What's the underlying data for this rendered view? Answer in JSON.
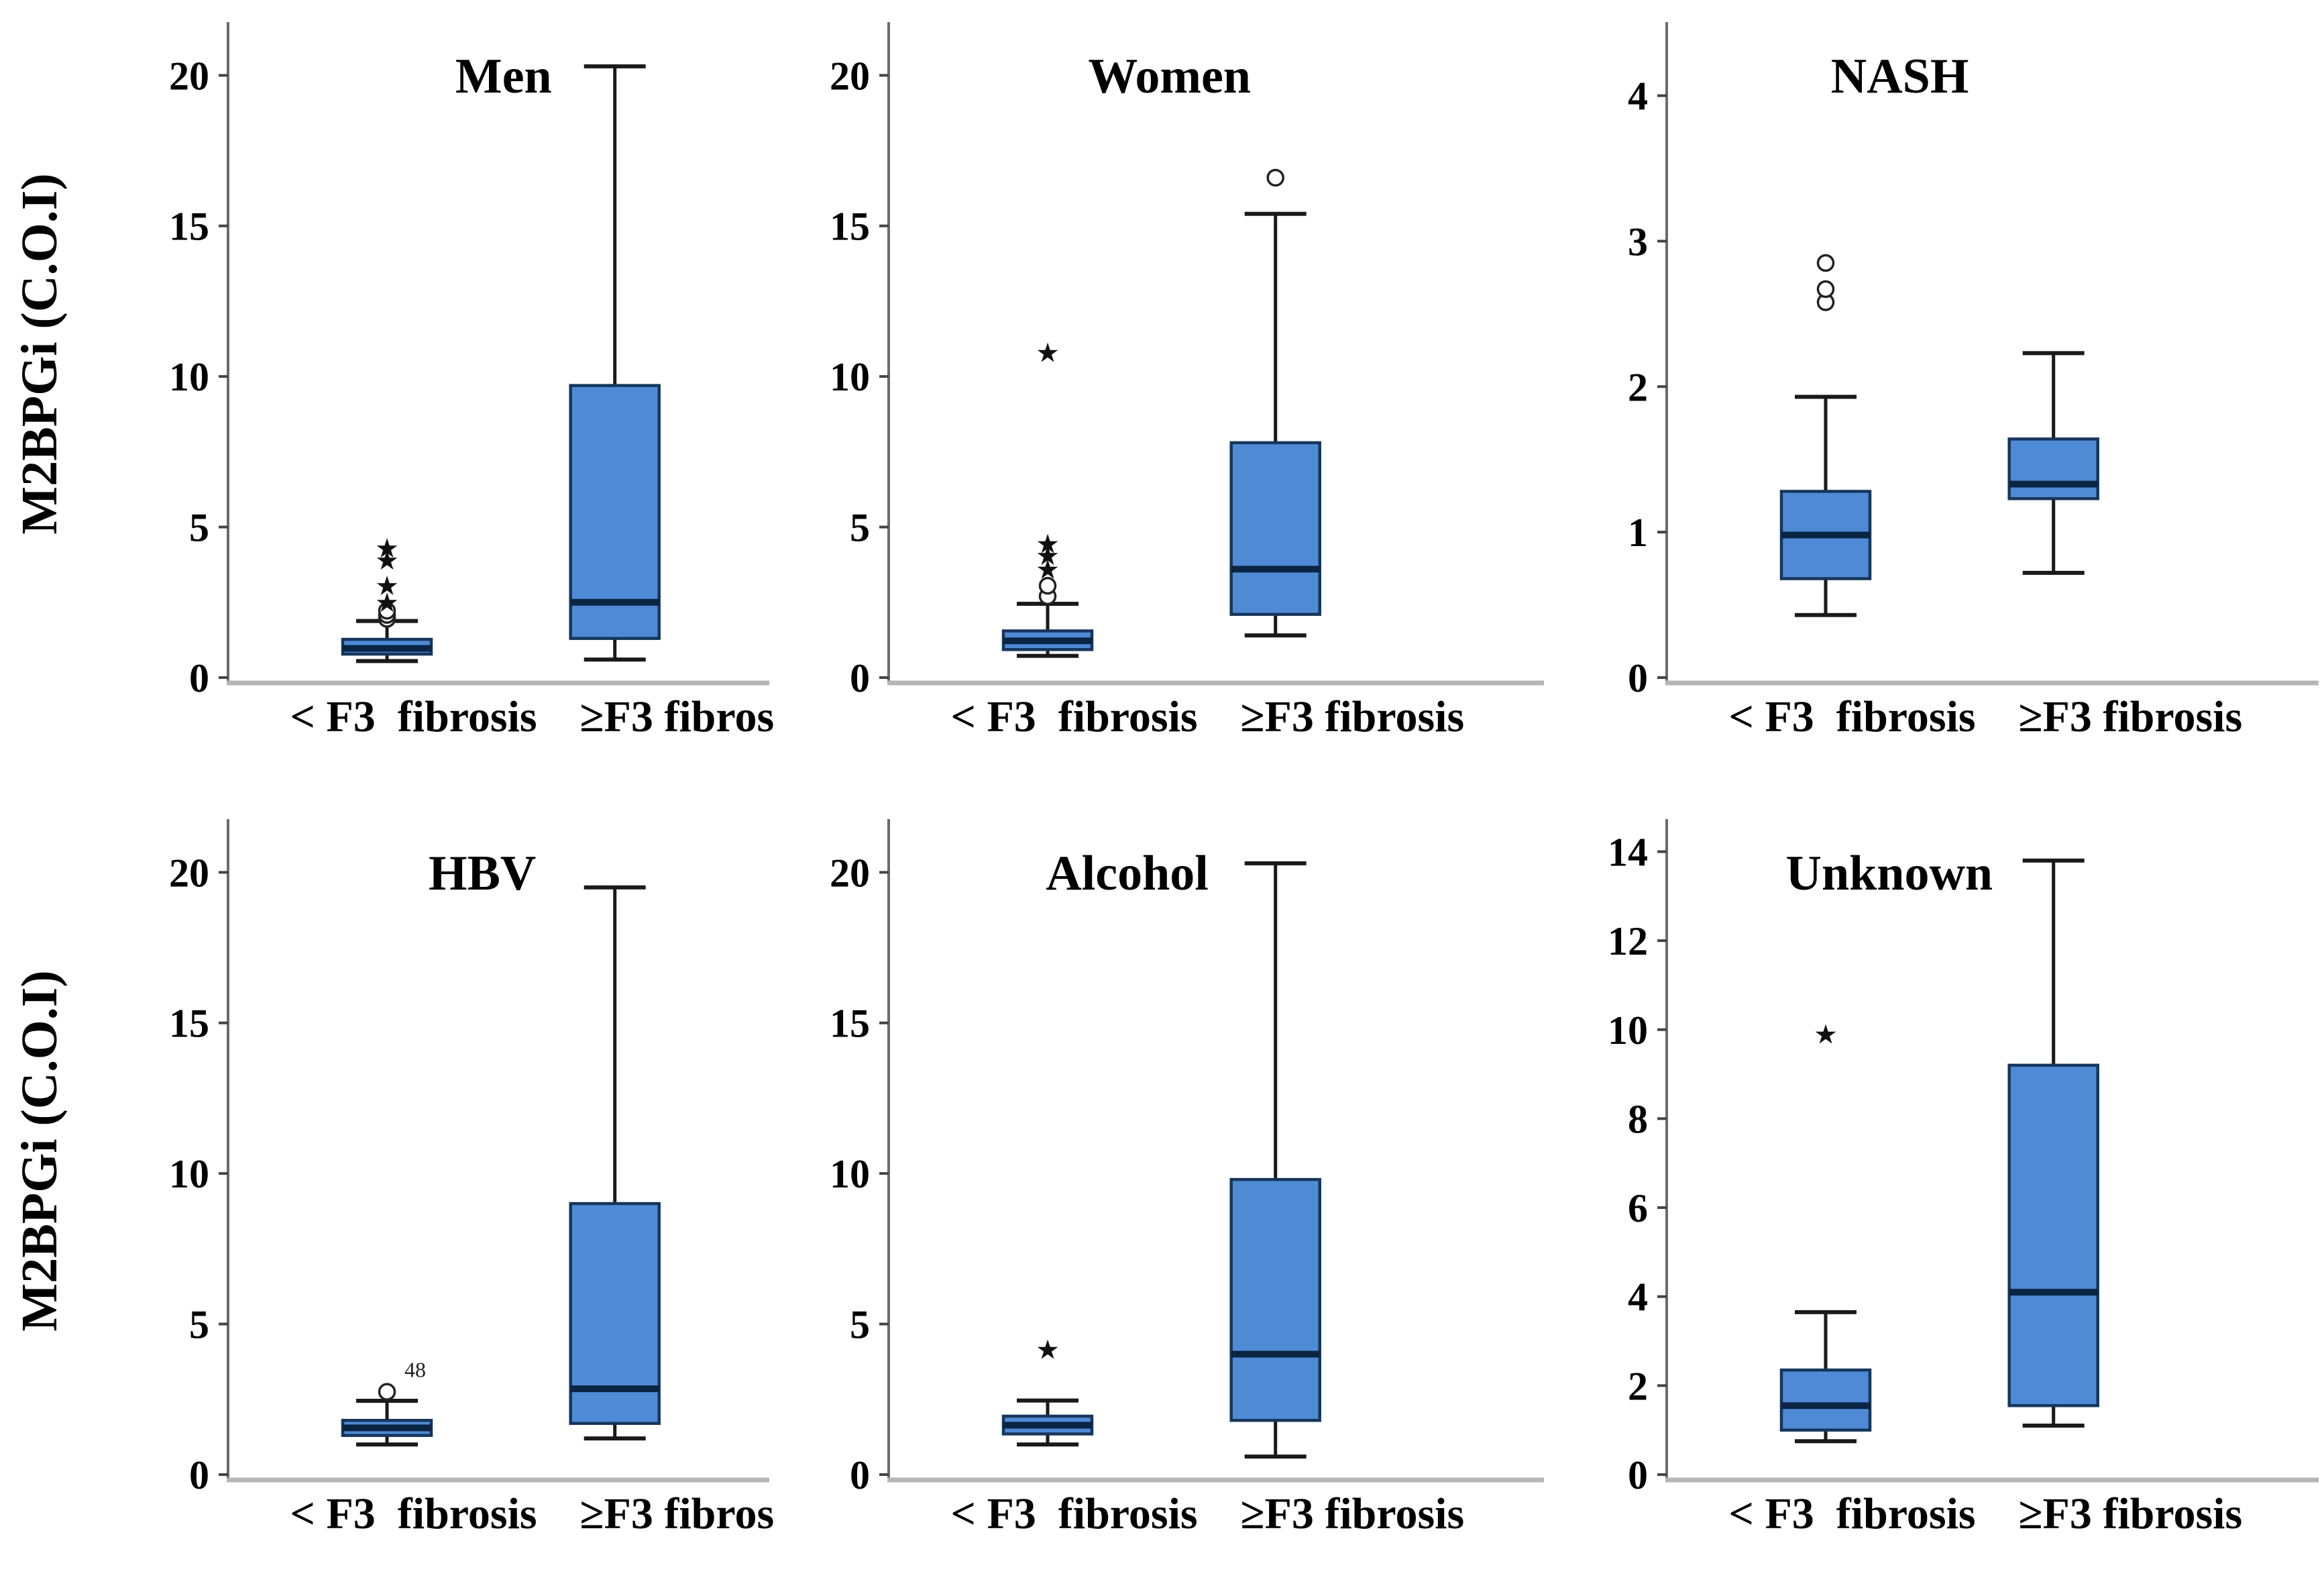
{
  "figure": {
    "ylabel": "M2BPGi (C.O.I)",
    "categories": [
      "< F3  fibrosis",
      "≥F3 fibrosis"
    ],
    "colors": {
      "box_fill": "#4f8bd5",
      "box_border": "#16365c",
      "median_line": "#0a2443",
      "whisker": "#1a1a1a",
      "y_axis": "#6b6b6b",
      "x_axis": "#b5b5b5",
      "tick": "#444444",
      "text": "#000000",
      "outlier_stroke": "#222222",
      "background": "#ffffff"
    }
  },
  "chart_data": [
    {
      "type": "box",
      "title": "Men",
      "title_x": 0.52,
      "show_ylabel": true,
      "plot_left": 340,
      "ymax": 21.5,
      "yticks": [
        0,
        5,
        10,
        15,
        20
      ],
      "boxes": [
        {
          "category": "< F3  fibrosis",
          "whisker_low": 0.55,
          "q1": 0.78,
          "median": 0.97,
          "q3": 1.27,
          "whisker_high": 1.88,
          "outliers_circles": [
            1.95,
            2.08,
            2.22
          ],
          "outliers_stars": [
            2.5,
            3.05,
            3.9,
            4.3
          ]
        },
        {
          "category": "≥F3 fibrosis",
          "whisker_low": 0.6,
          "q1": 1.3,
          "median": 2.5,
          "q3": 9.7,
          "whisker_high": 20.3,
          "outliers_circles": [],
          "outliers_stars": []
        }
      ]
    },
    {
      "type": "box",
      "title": "Women",
      "title_x": 0.53,
      "show_ylabel": false,
      "plot_left": 170,
      "ymax": 21.5,
      "yticks": [
        0,
        5,
        10,
        15,
        20
      ],
      "boxes": [
        {
          "category": "< F3  fibrosis",
          "whisker_low": 0.72,
          "q1": 0.93,
          "median": 1.22,
          "q3": 1.55,
          "whisker_high": 2.45,
          "outliers_circles": [
            2.7,
            3.05
          ],
          "outliers_stars": [
            3.6,
            4.05,
            4.45,
            10.8
          ]
        },
        {
          "category": "≥F3 fibrosis",
          "whisker_low": 1.4,
          "q1": 2.1,
          "median": 3.6,
          "q3": 7.8,
          "whisker_high": 15.4,
          "outliers_circles": [
            16.6
          ],
          "outliers_stars": []
        }
      ]
    },
    {
      "type": "box",
      "title": "NASH",
      "title_x": 0.44,
      "show_ylabel": false,
      "plot_left": 175,
      "ymax": 4.45,
      "yticks": [
        0,
        1,
        2,
        3,
        4
      ],
      "boxes": [
        {
          "category": "< F3  fibrosis",
          "whisker_low": 0.43,
          "q1": 0.68,
          "median": 0.98,
          "q3": 1.28,
          "whisker_high": 1.93,
          "outliers_circles": [
            2.58,
            2.67,
            2.85
          ],
          "outliers_stars": []
        },
        {
          "category": "≥F3 fibrosis",
          "whisker_low": 0.72,
          "q1": 1.23,
          "median": 1.33,
          "q3": 1.64,
          "whisker_high": 2.23,
          "outliers_circles": [],
          "outliers_stars": []
        }
      ]
    },
    {
      "type": "box",
      "title": "HBV",
      "title_x": 0.48,
      "show_ylabel": true,
      "plot_left": 340,
      "ymax": 21.5,
      "yticks": [
        0,
        5,
        10,
        15,
        20
      ],
      "boxes": [
        {
          "category": "< F3  fibrosis",
          "whisker_low": 1.0,
          "q1": 1.3,
          "median": 1.55,
          "q3": 1.8,
          "whisker_high": 2.45,
          "outliers_circles": [
            {
              "v": 2.75,
              "label": "48"
            }
          ],
          "outliers_stars": []
        },
        {
          "category": "≥F3 fibrosis",
          "whisker_low": 1.2,
          "q1": 1.7,
          "median": 2.85,
          "q3": 9.0,
          "whisker_high": 19.5,
          "outliers_circles": [],
          "outliers_stars": []
        }
      ]
    },
    {
      "type": "box",
      "title": "Alcohol",
      "title_x": 0.45,
      "show_ylabel": false,
      "plot_left": 170,
      "ymax": 21.5,
      "yticks": [
        0,
        5,
        10,
        15,
        20
      ],
      "boxes": [
        {
          "category": "< F3  fibrosis",
          "whisker_low": 1.0,
          "q1": 1.35,
          "median": 1.64,
          "q3": 1.94,
          "whisker_high": 2.46,
          "outliers_circles": [],
          "outliers_stars": [
            4.15
          ]
        },
        {
          "category": "≥F3 fibrosis",
          "whisker_low": 0.6,
          "q1": 1.8,
          "median": 4.0,
          "q3": 9.8,
          "whisker_high": 20.3,
          "outliers_circles": [],
          "outliers_stars": []
        }
      ]
    },
    {
      "type": "box",
      "title": "Unknown",
      "title_x": 0.42,
      "show_ylabel": false,
      "plot_left": 175,
      "ymax": 14.55,
      "yticks": [
        0,
        2,
        4,
        6,
        8,
        10,
        12,
        14
      ],
      "boxes": [
        {
          "category": "< F3  fibrosis",
          "whisker_low": 0.75,
          "q1": 1.0,
          "median": 1.55,
          "q3": 2.35,
          "whisker_high": 3.65,
          "outliers_circles": [],
          "outliers_stars": [
            9.9
          ]
        },
        {
          "category": "≥F3 fibrosis",
          "whisker_low": 1.1,
          "q1": 1.55,
          "median": 4.1,
          "q3": 9.2,
          "whisker_high": 13.8,
          "outliers_circles": [],
          "outliers_stars": []
        }
      ]
    }
  ]
}
